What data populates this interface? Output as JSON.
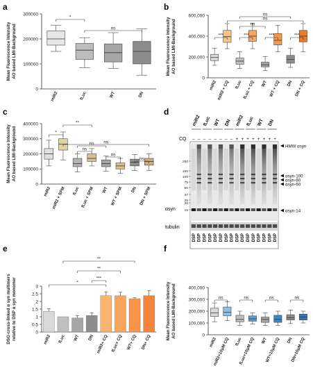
{
  "panels": {
    "a": {
      "letter": "a",
      "ylabel": [
        "Mean Fluorescence Intensity",
        "AO based LMI-Background"
      ],
      "yticks": [
        "0",
        "100000",
        "200000",
        "300000"
      ],
      "categories": [
        "miR2",
        "fLuc",
        "WT",
        "DN"
      ],
      "sig": [
        {
          "label": "*"
        },
        {
          "label": "ns"
        }
      ]
    },
    "b": {
      "letter": "b",
      "ylabel": [
        "Mean Fluorescence Intensity",
        "AO based LMI-Background"
      ],
      "yticks": [
        "0",
        "200,000",
        "400,000",
        "600,000"
      ],
      "categories": [
        "miR2",
        "miR2 + CQ",
        "fLuc",
        "fLuc + CQ",
        "WT",
        "WT + CQ",
        "DN",
        "DN + CQ"
      ],
      "sig": [
        {
          "label": "***"
        },
        {
          "label": "***"
        },
        {
          "label": "***"
        },
        {
          "label": "***"
        },
        {
          "label": "ns"
        },
        {
          "label": "ns"
        },
        {
          "label": "ns"
        }
      ]
    },
    "c": {
      "letter": "c",
      "ylabel": [
        "Mean Fluorescence Intensity",
        "AO based LMI-Background"
      ],
      "yticks": [
        "0",
        "100000",
        "200000",
        "300000",
        "400000"
      ],
      "categories": [
        "miR2",
        "miR2 + SPM",
        "fLuc",
        "fLuc + SPM",
        "WT",
        "WT + SPM",
        "DN",
        "DN + SPM"
      ],
      "sig": [
        {
          "label": "*"
        },
        {
          "label": "ns"
        },
        {
          "label": "ns"
        },
        {
          "label": "ns"
        },
        {
          "label": "**"
        },
        {
          "label": "ns"
        },
        {
          "label": "ns"
        }
      ]
    },
    "d": {
      "letter": "d",
      "lanes": [
        "miR2",
        "fLuc",
        "WT",
        "DN",
        "miR2",
        "fLuc",
        "WT",
        "DN"
      ],
      "cq_label": "CQ",
      "cq_states": [
        "–",
        "–",
        "–",
        "–",
        "–",
        "–",
        "–",
        "–",
        "+",
        "+",
        "+",
        "+",
        "+",
        "+",
        "+",
        "+"
      ],
      "mw_markers": [
        "250",
        "150",
        "100",
        "75",
        "50",
        "37",
        "25",
        "20",
        "15"
      ],
      "band_labels": [
        "HMW αsyn",
        "αsyn-100",
        "αsyn-80",
        "αsyn-60",
        "αsyn-14"
      ],
      "blot_label": "αsyn",
      "loading_label": "tubulin",
      "dsp_label": "DSP"
    },
    "e": {
      "letter": "e",
      "ylabel": [
        "DSG-cross-linked α syn multimers",
        "relative to DSP α syn monomer"
      ],
      "yticks": [
        "0",
        "0.5",
        "1",
        "1.5",
        "2",
        "2.5",
        "3"
      ],
      "categories": [
        "miR2",
        "fLuc",
        "WT",
        "DN",
        "miR2+ CQ",
        "fLuc+ CQ",
        "WT+ CQ",
        "DN+ CQ"
      ],
      "sig": [
        {
          "label": "**"
        },
        {
          "label": "**"
        },
        {
          "label": "***"
        },
        {
          "label": "*"
        }
      ]
    },
    "f": {
      "letter": "f",
      "ylabel": [
        "Mean Fluorescence Intensity",
        "AO based LMI-Background"
      ],
      "yticks": [
        "0",
        "100,000",
        "200,000",
        "300,000",
        "400,000"
      ],
      "categories": [
        "miR2",
        "miR2+10μM CQ",
        "fLuc",
        "fLuc+10μM CQ",
        "WT",
        "WT+10μM CQ",
        "DN",
        "DN+10μM CQ"
      ],
      "sig": [
        {
          "label": "ns"
        },
        {
          "label": "ns"
        },
        {
          "label": "ns"
        },
        {
          "label": "ns"
        }
      ]
    }
  },
  "chart_data": [
    {
      "panel": "a",
      "type": "box",
      "categories": [
        "miR2",
        "fLuc",
        "WT",
        "DN"
      ],
      "ylim": [
        0,
        300000
      ],
      "colors": [
        "#e6e6e6",
        "#bdbdbd",
        "#a6a6a6",
        "#8c8c8c"
      ],
      "boxes": [
        {
          "min": 150000,
          "q1": 175000,
          "median": 200000,
          "q3": 232000,
          "max": 255000
        },
        {
          "min": 85000,
          "q1": 118000,
          "median": 155000,
          "q3": 182000,
          "max": 205000
        },
        {
          "min": 82000,
          "q1": 108000,
          "median": 145000,
          "q3": 180000,
          "max": 225000
        },
        {
          "min": 55000,
          "q1": 100000,
          "median": 150000,
          "q3": 190000,
          "max": 240000
        }
      ]
    },
    {
      "panel": "b",
      "type": "box",
      "categories": [
        "miR2",
        "miR2 + CQ",
        "fLuc",
        "fLuc + CQ",
        "WT",
        "WT + CQ",
        "DN",
        "DN + CQ"
      ],
      "ylim": [
        0,
        600000
      ],
      "colors": [
        "#d9d9d9",
        "#f9c48a",
        "#bfbfbf",
        "#f6a55e",
        "#a6a6a6",
        "#f39a49",
        "#8c8c8c",
        "#ee7a2b"
      ],
      "boxes": [
        {
          "min": 120000,
          "q1": 165000,
          "median": 195000,
          "q3": 225000,
          "max": 285000
        },
        {
          "min": 280000,
          "q1": 340000,
          "median": 395000,
          "q3": 455000,
          "max": 520000
        },
        {
          "min": 90000,
          "q1": 130000,
          "median": 160000,
          "q3": 190000,
          "max": 250000
        },
        {
          "min": 280000,
          "q1": 350000,
          "median": 400000,
          "q3": 455000,
          "max": 525000
        },
        {
          "min": 70000,
          "q1": 105000,
          "median": 125000,
          "q3": 150000,
          "max": 205000
        },
        {
          "min": 250000,
          "q1": 315000,
          "median": 360000,
          "q3": 425000,
          "max": 505000
        },
        {
          "min": 100000,
          "q1": 140000,
          "median": 175000,
          "q3": 215000,
          "max": 285000
        },
        {
          "min": 250000,
          "q1": 345000,
          "median": 400000,
          "q3": 455000,
          "max": 520000
        }
      ]
    },
    {
      "panel": "c",
      "type": "box",
      "categories": [
        "miR2",
        "miR2 + SPM",
        "fLuc",
        "fLuc + SPM",
        "WT",
        "WT + SPM",
        "DN",
        "DN + SPM"
      ],
      "ylim": [
        0,
        400000
      ],
      "colors": [
        "#e0e0e0",
        "#e3d0a3",
        "#b3b3b3",
        "#d8c096",
        "#a6a6a6",
        "#d9bf8f",
        "#8c8c8c",
        "#cfae7b"
      ],
      "boxes": [
        {
          "min": 120000,
          "q1": 165000,
          "median": 200000,
          "q3": 235000,
          "max": 290000
        },
        {
          "min": 160000,
          "q1": 225000,
          "median": 265000,
          "q3": 300000,
          "max": 345000
        },
        {
          "min": 80000,
          "q1": 115000,
          "median": 135000,
          "q3": 170000,
          "max": 200000
        },
        {
          "min": 120000,
          "q1": 150000,
          "median": 170000,
          "q3": 200000,
          "max": 235000
        },
        {
          "min": 85000,
          "q1": 115000,
          "median": 135000,
          "q3": 160000,
          "max": 185000
        },
        {
          "min": 70000,
          "q1": 100000,
          "median": 120000,
          "q3": 140000,
          "max": 170000
        },
        {
          "min": 90000,
          "q1": 120000,
          "median": 145000,
          "q3": 165000,
          "max": 195000
        },
        {
          "min": 90000,
          "q1": 125000,
          "median": 150000,
          "q3": 170000,
          "max": 200000
        }
      ]
    },
    {
      "panel": "e",
      "type": "bar",
      "categories": [
        "miR2",
        "fLuc",
        "WT",
        "DN",
        "miR2+ CQ",
        "fLuc+ CQ",
        "WT+ CQ",
        "DN+ CQ"
      ],
      "values": [
        1.35,
        1.0,
        0.92,
        1.08,
        2.38,
        2.37,
        2.18,
        2.38
      ],
      "errors": [
        0.18,
        0.0,
        0.15,
        0.18,
        0.25,
        0.23,
        0.06,
        0.32
      ],
      "ylim": [
        0,
        3
      ],
      "colors": [
        "#d9d9d9",
        "#bfbfbf",
        "#a6a6a6",
        "#8c8c8c",
        "#fbb46e",
        "#f9a55c",
        "#f69548",
        "#f3843a"
      ]
    },
    {
      "panel": "f",
      "type": "box",
      "categories": [
        "miR2",
        "miR2+10μM CQ",
        "fLuc",
        "fLuc+10μM CQ",
        "WT",
        "WT+10μM CQ",
        "DN",
        "DN+10μM CQ"
      ],
      "ylim": [
        0,
        400000
      ],
      "colors": [
        "#d9d9d9",
        "#8ec0e6",
        "#bfbfbf",
        "#5a9ed6",
        "#a6a6a6",
        "#3d88c7",
        "#8c8c8c",
        "#2f78b8"
      ],
      "boxes": [
        {
          "min": 110000,
          "q1": 155000,
          "median": 185000,
          "q3": 225000,
          "max": 270000
        },
        {
          "min": 120000,
          "q1": 160000,
          "median": 190000,
          "q3": 235000,
          "max": 280000
        },
        {
          "min": 80000,
          "q1": 110000,
          "median": 130000,
          "q3": 165000,
          "max": 200000
        },
        {
          "min": 90000,
          "q1": 115000,
          "median": 135000,
          "q3": 160000,
          "max": 185000
        },
        {
          "min": 80000,
          "q1": 105000,
          "median": 130000,
          "q3": 150000,
          "max": 185000
        },
        {
          "min": 80000,
          "q1": 105000,
          "median": 130000,
          "q3": 165000,
          "max": 200000
        },
        {
          "min": 95000,
          "q1": 125000,
          "median": 145000,
          "q3": 170000,
          "max": 210000
        },
        {
          "min": 100000,
          "q1": 125000,
          "median": 150000,
          "q3": 175000,
          "max": 200000
        }
      ]
    }
  ]
}
